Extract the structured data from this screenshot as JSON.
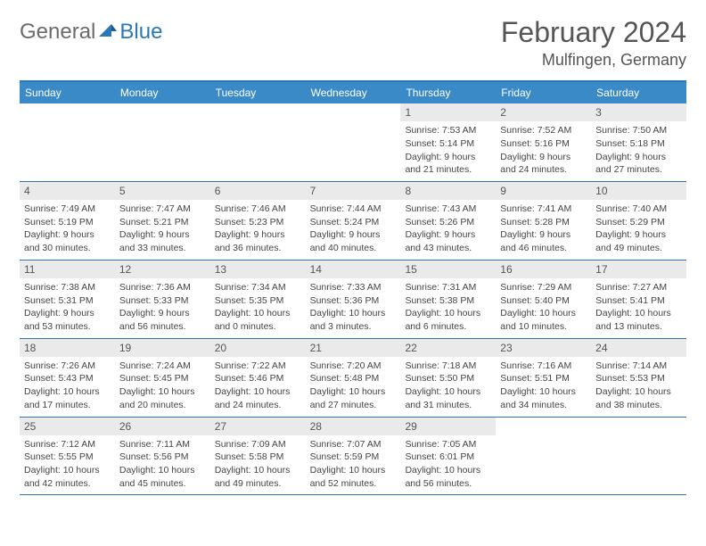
{
  "logo": {
    "general": "General",
    "blue": "Blue"
  },
  "title": "February 2024",
  "location": "Mulfingen, Germany",
  "colors": {
    "header_bar": "#3a8ac7",
    "accent": "#2c78b7",
    "day_num_bg": "#eaeaea",
    "text": "#444444"
  },
  "weekdays": [
    "Sunday",
    "Monday",
    "Tuesday",
    "Wednesday",
    "Thursday",
    "Friday",
    "Saturday"
  ],
  "cells": [
    {
      "empty": true
    },
    {
      "empty": true
    },
    {
      "empty": true
    },
    {
      "empty": true
    },
    {
      "day": "1",
      "sunrise": "Sunrise: 7:53 AM",
      "sunset": "Sunset: 5:14 PM",
      "dl1": "Daylight: 9 hours",
      "dl2": "and 21 minutes."
    },
    {
      "day": "2",
      "sunrise": "Sunrise: 7:52 AM",
      "sunset": "Sunset: 5:16 PM",
      "dl1": "Daylight: 9 hours",
      "dl2": "and 24 minutes."
    },
    {
      "day": "3",
      "sunrise": "Sunrise: 7:50 AM",
      "sunset": "Sunset: 5:18 PM",
      "dl1": "Daylight: 9 hours",
      "dl2": "and 27 minutes."
    },
    {
      "day": "4",
      "sunrise": "Sunrise: 7:49 AM",
      "sunset": "Sunset: 5:19 PM",
      "dl1": "Daylight: 9 hours",
      "dl2": "and 30 minutes."
    },
    {
      "day": "5",
      "sunrise": "Sunrise: 7:47 AM",
      "sunset": "Sunset: 5:21 PM",
      "dl1": "Daylight: 9 hours",
      "dl2": "and 33 minutes."
    },
    {
      "day": "6",
      "sunrise": "Sunrise: 7:46 AM",
      "sunset": "Sunset: 5:23 PM",
      "dl1": "Daylight: 9 hours",
      "dl2": "and 36 minutes."
    },
    {
      "day": "7",
      "sunrise": "Sunrise: 7:44 AM",
      "sunset": "Sunset: 5:24 PM",
      "dl1": "Daylight: 9 hours",
      "dl2": "and 40 minutes."
    },
    {
      "day": "8",
      "sunrise": "Sunrise: 7:43 AM",
      "sunset": "Sunset: 5:26 PM",
      "dl1": "Daylight: 9 hours",
      "dl2": "and 43 minutes."
    },
    {
      "day": "9",
      "sunrise": "Sunrise: 7:41 AM",
      "sunset": "Sunset: 5:28 PM",
      "dl1": "Daylight: 9 hours",
      "dl2": "and 46 minutes."
    },
    {
      "day": "10",
      "sunrise": "Sunrise: 7:40 AM",
      "sunset": "Sunset: 5:29 PM",
      "dl1": "Daylight: 9 hours",
      "dl2": "and 49 minutes."
    },
    {
      "day": "11",
      "sunrise": "Sunrise: 7:38 AM",
      "sunset": "Sunset: 5:31 PM",
      "dl1": "Daylight: 9 hours",
      "dl2": "and 53 minutes."
    },
    {
      "day": "12",
      "sunrise": "Sunrise: 7:36 AM",
      "sunset": "Sunset: 5:33 PM",
      "dl1": "Daylight: 9 hours",
      "dl2": "and 56 minutes."
    },
    {
      "day": "13",
      "sunrise": "Sunrise: 7:34 AM",
      "sunset": "Sunset: 5:35 PM",
      "dl1": "Daylight: 10 hours",
      "dl2": "and 0 minutes."
    },
    {
      "day": "14",
      "sunrise": "Sunrise: 7:33 AM",
      "sunset": "Sunset: 5:36 PM",
      "dl1": "Daylight: 10 hours",
      "dl2": "and 3 minutes."
    },
    {
      "day": "15",
      "sunrise": "Sunrise: 7:31 AM",
      "sunset": "Sunset: 5:38 PM",
      "dl1": "Daylight: 10 hours",
      "dl2": "and 6 minutes."
    },
    {
      "day": "16",
      "sunrise": "Sunrise: 7:29 AM",
      "sunset": "Sunset: 5:40 PM",
      "dl1": "Daylight: 10 hours",
      "dl2": "and 10 minutes."
    },
    {
      "day": "17",
      "sunrise": "Sunrise: 7:27 AM",
      "sunset": "Sunset: 5:41 PM",
      "dl1": "Daylight: 10 hours",
      "dl2": "and 13 minutes."
    },
    {
      "day": "18",
      "sunrise": "Sunrise: 7:26 AM",
      "sunset": "Sunset: 5:43 PM",
      "dl1": "Daylight: 10 hours",
      "dl2": "and 17 minutes."
    },
    {
      "day": "19",
      "sunrise": "Sunrise: 7:24 AM",
      "sunset": "Sunset: 5:45 PM",
      "dl1": "Daylight: 10 hours",
      "dl2": "and 20 minutes."
    },
    {
      "day": "20",
      "sunrise": "Sunrise: 7:22 AM",
      "sunset": "Sunset: 5:46 PM",
      "dl1": "Daylight: 10 hours",
      "dl2": "and 24 minutes."
    },
    {
      "day": "21",
      "sunrise": "Sunrise: 7:20 AM",
      "sunset": "Sunset: 5:48 PM",
      "dl1": "Daylight: 10 hours",
      "dl2": "and 27 minutes."
    },
    {
      "day": "22",
      "sunrise": "Sunrise: 7:18 AM",
      "sunset": "Sunset: 5:50 PM",
      "dl1": "Daylight: 10 hours",
      "dl2": "and 31 minutes."
    },
    {
      "day": "23",
      "sunrise": "Sunrise: 7:16 AM",
      "sunset": "Sunset: 5:51 PM",
      "dl1": "Daylight: 10 hours",
      "dl2": "and 34 minutes."
    },
    {
      "day": "24",
      "sunrise": "Sunrise: 7:14 AM",
      "sunset": "Sunset: 5:53 PM",
      "dl1": "Daylight: 10 hours",
      "dl2": "and 38 minutes."
    },
    {
      "day": "25",
      "sunrise": "Sunrise: 7:12 AM",
      "sunset": "Sunset: 5:55 PM",
      "dl1": "Daylight: 10 hours",
      "dl2": "and 42 minutes."
    },
    {
      "day": "26",
      "sunrise": "Sunrise: 7:11 AM",
      "sunset": "Sunset: 5:56 PM",
      "dl1": "Daylight: 10 hours",
      "dl2": "and 45 minutes."
    },
    {
      "day": "27",
      "sunrise": "Sunrise: 7:09 AM",
      "sunset": "Sunset: 5:58 PM",
      "dl1": "Daylight: 10 hours",
      "dl2": "and 49 minutes."
    },
    {
      "day": "28",
      "sunrise": "Sunrise: 7:07 AM",
      "sunset": "Sunset: 5:59 PM",
      "dl1": "Daylight: 10 hours",
      "dl2": "and 52 minutes."
    },
    {
      "day": "29",
      "sunrise": "Sunrise: 7:05 AM",
      "sunset": "Sunset: 6:01 PM",
      "dl1": "Daylight: 10 hours",
      "dl2": "and 56 minutes."
    },
    {
      "empty": true
    },
    {
      "empty": true
    }
  ]
}
